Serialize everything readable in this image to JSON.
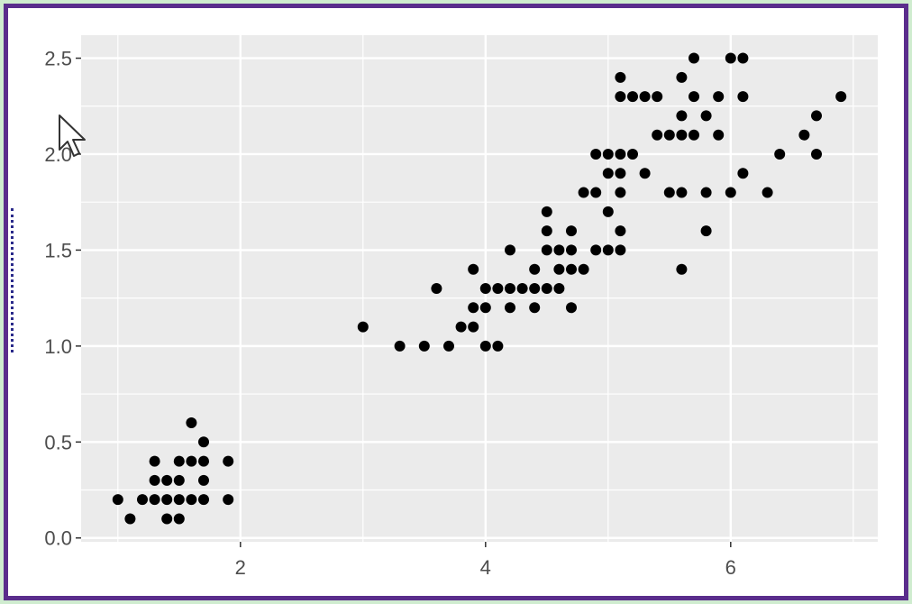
{
  "chart_data": {
    "type": "scatter",
    "title": "",
    "xlabel": "",
    "ylabel": "",
    "xlim": [
      0.7,
      7.2
    ],
    "ylim": [
      -0.02,
      2.62
    ],
    "x_ticks": [
      2,
      4,
      6
    ],
    "x_tick_labels": [
      "2",
      "4",
      "6"
    ],
    "y_ticks": [
      0.0,
      0.5,
      1.0,
      1.5,
      2.0,
      2.5
    ],
    "y_tick_labels": [
      "0.0",
      "0.5",
      "1.0",
      "1.5",
      "2.0",
      "2.5"
    ],
    "grid": true,
    "point_color": "#000000",
    "panel_color": "#ebebeb",
    "points": [
      [
        1.0,
        0.2
      ],
      [
        1.1,
        0.1
      ],
      [
        1.2,
        0.2
      ],
      [
        1.3,
        0.2
      ],
      [
        1.3,
        0.3
      ],
      [
        1.3,
        0.4
      ],
      [
        1.4,
        0.2
      ],
      [
        1.4,
        0.3
      ],
      [
        1.4,
        0.1
      ],
      [
        1.5,
        0.2
      ],
      [
        1.5,
        0.1
      ],
      [
        1.5,
        0.3
      ],
      [
        1.5,
        0.4
      ],
      [
        1.6,
        0.2
      ],
      [
        1.6,
        0.4
      ],
      [
        1.6,
        0.6
      ],
      [
        1.7,
        0.2
      ],
      [
        1.7,
        0.3
      ],
      [
        1.7,
        0.4
      ],
      [
        1.7,
        0.5
      ],
      [
        1.9,
        0.2
      ],
      [
        1.9,
        0.4
      ],
      [
        3.0,
        1.1
      ],
      [
        3.3,
        1.0
      ],
      [
        3.5,
        1.0
      ],
      [
        3.6,
        1.3
      ],
      [
        3.7,
        1.0
      ],
      [
        3.8,
        1.1
      ],
      [
        3.9,
        1.1
      ],
      [
        3.9,
        1.2
      ],
      [
        3.9,
        1.4
      ],
      [
        4.0,
        1.0
      ],
      [
        4.0,
        1.2
      ],
      [
        4.0,
        1.3
      ],
      [
        4.1,
        1.0
      ],
      [
        4.1,
        1.3
      ],
      [
        4.2,
        1.2
      ],
      [
        4.2,
        1.3
      ],
      [
        4.2,
        1.5
      ],
      [
        4.3,
        1.3
      ],
      [
        4.4,
        1.2
      ],
      [
        4.4,
        1.3
      ],
      [
        4.4,
        1.4
      ],
      [
        4.5,
        1.3
      ],
      [
        4.5,
        1.5
      ],
      [
        4.5,
        1.6
      ],
      [
        4.5,
        1.7
      ],
      [
        4.6,
        1.3
      ],
      [
        4.6,
        1.4
      ],
      [
        4.6,
        1.5
      ],
      [
        4.7,
        1.2
      ],
      [
        4.7,
        1.4
      ],
      [
        4.7,
        1.5
      ],
      [
        4.7,
        1.6
      ],
      [
        4.8,
        1.4
      ],
      [
        4.8,
        1.8
      ],
      [
        4.9,
        1.5
      ],
      [
        4.9,
        1.8
      ],
      [
        4.9,
        2.0
      ],
      [
        5.0,
        1.5
      ],
      [
        5.0,
        1.7
      ],
      [
        5.0,
        2.0
      ],
      [
        5.0,
        1.9
      ],
      [
        5.1,
        1.5
      ],
      [
        5.1,
        1.6
      ],
      [
        5.1,
        1.8
      ],
      [
        5.1,
        1.9
      ],
      [
        5.1,
        2.0
      ],
      [
        5.1,
        2.3
      ],
      [
        5.1,
        2.4
      ],
      [
        5.2,
        2.0
      ],
      [
        5.2,
        2.3
      ],
      [
        5.3,
        1.9
      ],
      [
        5.3,
        2.3
      ],
      [
        5.4,
        2.1
      ],
      [
        5.4,
        2.3
      ],
      [
        5.5,
        1.8
      ],
      [
        5.5,
        2.1
      ],
      [
        5.6,
        1.4
      ],
      [
        5.6,
        1.8
      ],
      [
        5.6,
        2.1
      ],
      [
        5.6,
        2.2
      ],
      [
        5.6,
        2.4
      ],
      [
        5.7,
        2.1
      ],
      [
        5.7,
        2.3
      ],
      [
        5.7,
        2.5
      ],
      [
        5.8,
        1.6
      ],
      [
        5.8,
        1.8
      ],
      [
        5.8,
        2.2
      ],
      [
        5.9,
        2.1
      ],
      [
        5.9,
        2.3
      ],
      [
        6.0,
        1.8
      ],
      [
        6.0,
        2.5
      ],
      [
        6.1,
        1.9
      ],
      [
        6.1,
        2.3
      ],
      [
        6.1,
        2.5
      ],
      [
        6.3,
        1.8
      ],
      [
        6.4,
        2.0
      ],
      [
        6.6,
        2.1
      ],
      [
        6.7,
        2.0
      ],
      [
        6.7,
        2.2
      ],
      [
        6.9,
        2.3
      ]
    ]
  }
}
